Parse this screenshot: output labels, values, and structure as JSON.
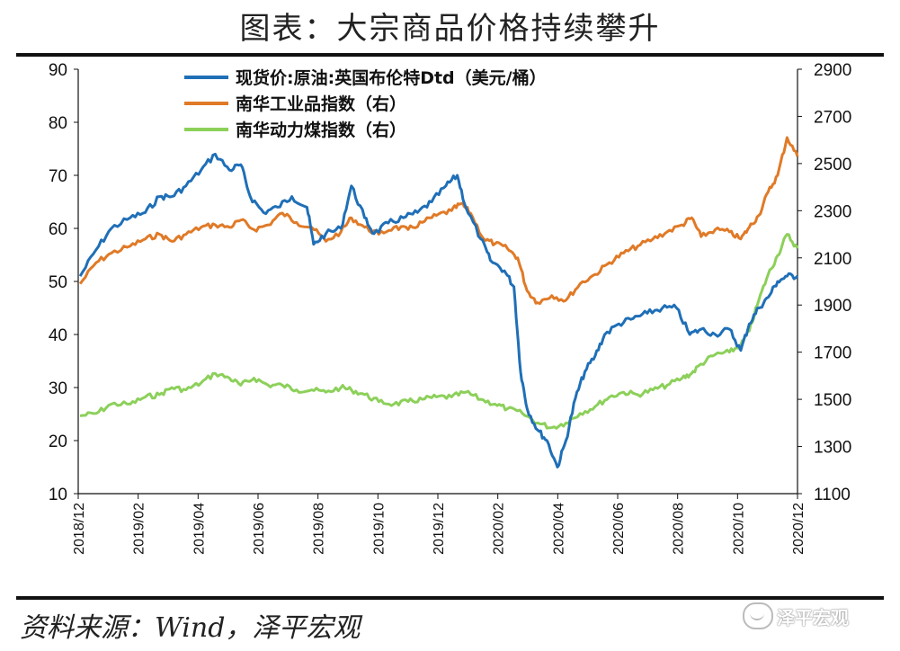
{
  "header": {
    "title": "图表：大宗商品价格持续攀升"
  },
  "footer": {
    "source": "资料来源：Wind，泽平宏观",
    "watermark": "泽平宏观"
  },
  "colors": {
    "brent": "#1F6FB7",
    "industrial": "#E07A27",
    "coal": "#8CD05A",
    "axis": "#111111"
  },
  "chart_data": {
    "type": "line",
    "title": "",
    "x_tick_labels": [
      "2018/12",
      "2019/02",
      "2019/04",
      "2019/06",
      "2019/08",
      "2019/10",
      "2019/12",
      "2020/02",
      "2020/04",
      "2020/06",
      "2020/08",
      "2020/10",
      "2020/12"
    ],
    "y_left": {
      "range": [
        10,
        90
      ],
      "ticks": [
        10,
        20,
        30,
        40,
        50,
        60,
        70,
        80,
        90
      ]
    },
    "y_right": {
      "range": [
        1100,
        2900
      ],
      "ticks": [
        1100,
        1300,
        1500,
        1700,
        1900,
        2100,
        2300,
        2500,
        2700,
        2900
      ]
    },
    "legend_position": "top-center",
    "series": [
      {
        "name": "现货价:原油:英国布伦特Dtd（美元/桶）",
        "axis": "left",
        "color_key": "brent",
        "points": [
          [
            "2018-12-03",
            51
          ],
          [
            "2018-12-20",
            56
          ],
          [
            "2019-01-05",
            60
          ],
          [
            "2019-01-25",
            62
          ],
          [
            "2019-02-10",
            63
          ],
          [
            "2019-02-25",
            66
          ],
          [
            "2019-03-10",
            66
          ],
          [
            "2019-03-25",
            68
          ],
          [
            "2019-04-10",
            71
          ],
          [
            "2019-04-25",
            74
          ],
          [
            "2019-05-10",
            71
          ],
          [
            "2019-05-22",
            72
          ],
          [
            "2019-06-01",
            66
          ],
          [
            "2019-06-15",
            63
          ],
          [
            "2019-06-30",
            64
          ],
          [
            "2019-07-15",
            66
          ],
          [
            "2019-07-31",
            64
          ],
          [
            "2019-08-07",
            57
          ],
          [
            "2019-08-20",
            59
          ],
          [
            "2019-09-05",
            60
          ],
          [
            "2019-09-16",
            68
          ],
          [
            "2019-09-30",
            62
          ],
          [
            "2019-10-10",
            59
          ],
          [
            "2019-10-25",
            61
          ],
          [
            "2019-11-10",
            62
          ],
          [
            "2019-11-25",
            63
          ],
          [
            "2019-12-10",
            65
          ],
          [
            "2019-12-25",
            68
          ],
          [
            "2020-01-06",
            70
          ],
          [
            "2020-01-15",
            64
          ],
          [
            "2020-01-31",
            58
          ],
          [
            "2020-02-10",
            54
          ],
          [
            "2020-02-25",
            52
          ],
          [
            "2020-03-06",
            49
          ],
          [
            "2020-03-13",
            33
          ],
          [
            "2020-03-20",
            26
          ],
          [
            "2020-03-31",
            22
          ],
          [
            "2020-04-10",
            20
          ],
          [
            "2020-04-21",
            15
          ],
          [
            "2020-04-30",
            20
          ],
          [
            "2020-05-10",
            28
          ],
          [
            "2020-05-20",
            33
          ],
          [
            "2020-05-31",
            36
          ],
          [
            "2020-06-10",
            40
          ],
          [
            "2020-06-25",
            42
          ],
          [
            "2020-07-10",
            43
          ],
          [
            "2020-07-25",
            44
          ],
          [
            "2020-08-10",
            45
          ],
          [
            "2020-08-25",
            45
          ],
          [
            "2020-09-08",
            40
          ],
          [
            "2020-09-20",
            41
          ],
          [
            "2020-10-05",
            40
          ],
          [
            "2020-10-20",
            41
          ],
          [
            "2020-11-01",
            37
          ],
          [
            "2020-11-10",
            42
          ],
          [
            "2020-11-20",
            45
          ],
          [
            "2020-11-30",
            47
          ],
          [
            "2020-12-10",
            50
          ],
          [
            "2020-12-20",
            51
          ],
          [
            "2020-12-31",
            51
          ]
        ]
      },
      {
        "name": "南华工业品指数（右）",
        "axis": "right",
        "color_key": "industrial",
        "points": [
          [
            "2018-12-03",
            1990
          ],
          [
            "2018-12-20",
            2080
          ],
          [
            "2019-01-05",
            2120
          ],
          [
            "2019-01-25",
            2150
          ],
          [
            "2019-02-10",
            2180
          ],
          [
            "2019-02-25",
            2200
          ],
          [
            "2019-03-10",
            2170
          ],
          [
            "2019-03-25",
            2200
          ],
          [
            "2019-04-10",
            2230
          ],
          [
            "2019-04-25",
            2240
          ],
          [
            "2019-05-10",
            2230
          ],
          [
            "2019-05-22",
            2260
          ],
          [
            "2019-06-05",
            2220
          ],
          [
            "2019-06-20",
            2240
          ],
          [
            "2019-07-05",
            2290
          ],
          [
            "2019-07-20",
            2250
          ],
          [
            "2019-08-05",
            2230
          ],
          [
            "2019-08-20",
            2170
          ],
          [
            "2019-09-05",
            2210
          ],
          [
            "2019-09-16",
            2270
          ],
          [
            "2019-09-30",
            2230
          ],
          [
            "2019-10-15",
            2200
          ],
          [
            "2019-10-31",
            2230
          ],
          [
            "2019-11-15",
            2220
          ],
          [
            "2019-11-30",
            2250
          ],
          [
            "2019-12-15",
            2280
          ],
          [
            "2019-12-31",
            2300
          ],
          [
            "2020-01-10",
            2330
          ],
          [
            "2020-01-20",
            2290
          ],
          [
            "2020-02-03",
            2180
          ],
          [
            "2020-02-15",
            2160
          ],
          [
            "2020-02-28",
            2140
          ],
          [
            "2020-03-10",
            2100
          ],
          [
            "2020-03-20",
            1960
          ],
          [
            "2020-03-31",
            1910
          ],
          [
            "2020-04-15",
            1940
          ],
          [
            "2020-04-30",
            1920
          ],
          [
            "2020-05-15",
            1990
          ],
          [
            "2020-05-31",
            2030
          ],
          [
            "2020-06-15",
            2080
          ],
          [
            "2020-06-30",
            2120
          ],
          [
            "2020-07-15",
            2150
          ],
          [
            "2020-07-31",
            2180
          ],
          [
            "2020-08-15",
            2210
          ],
          [
            "2020-08-31",
            2240
          ],
          [
            "2020-09-10",
            2270
          ],
          [
            "2020-09-20",
            2190
          ],
          [
            "2020-10-05",
            2220
          ],
          [
            "2020-10-20",
            2210
          ],
          [
            "2020-11-01",
            2180
          ],
          [
            "2020-11-10",
            2230
          ],
          [
            "2020-11-20",
            2280
          ],
          [
            "2020-11-30",
            2380
          ],
          [
            "2020-12-10",
            2450
          ],
          [
            "2020-12-20",
            2610
          ],
          [
            "2020-12-31",
            2530
          ]
        ]
      },
      {
        "name": "南华动力煤指数（右）",
        "axis": "right",
        "color_key": "coal",
        "points": [
          [
            "2018-12-03",
            1430
          ],
          [
            "2018-12-20",
            1440
          ],
          [
            "2019-01-05",
            1480
          ],
          [
            "2019-01-25",
            1480
          ],
          [
            "2019-02-10",
            1510
          ],
          [
            "2019-02-25",
            1520
          ],
          [
            "2019-03-10",
            1550
          ],
          [
            "2019-03-25",
            1540
          ],
          [
            "2019-04-10",
            1570
          ],
          [
            "2019-04-25",
            1610
          ],
          [
            "2019-05-10",
            1590
          ],
          [
            "2019-05-22",
            1560
          ],
          [
            "2019-06-05",
            1590
          ],
          [
            "2019-06-20",
            1560
          ],
          [
            "2019-07-05",
            1560
          ],
          [
            "2019-07-20",
            1540
          ],
          [
            "2019-08-05",
            1540
          ],
          [
            "2019-08-20",
            1530
          ],
          [
            "2019-09-05",
            1550
          ],
          [
            "2019-09-16",
            1540
          ],
          [
            "2019-09-30",
            1520
          ],
          [
            "2019-10-15",
            1490
          ],
          [
            "2019-10-31",
            1480
          ],
          [
            "2019-11-15",
            1490
          ],
          [
            "2019-11-30",
            1500
          ],
          [
            "2019-12-15",
            1510
          ],
          [
            "2019-12-31",
            1510
          ],
          [
            "2020-01-15",
            1530
          ],
          [
            "2020-01-31",
            1500
          ],
          [
            "2020-02-15",
            1480
          ],
          [
            "2020-02-28",
            1460
          ],
          [
            "2020-03-15",
            1440
          ],
          [
            "2020-03-31",
            1400
          ],
          [
            "2020-04-15",
            1380
          ],
          [
            "2020-04-30",
            1400
          ],
          [
            "2020-05-15",
            1440
          ],
          [
            "2020-05-31",
            1470
          ],
          [
            "2020-06-15",
            1510
          ],
          [
            "2020-06-30",
            1530
          ],
          [
            "2020-07-15",
            1520
          ],
          [
            "2020-07-31",
            1540
          ],
          [
            "2020-08-15",
            1560
          ],
          [
            "2020-08-31",
            1590
          ],
          [
            "2020-09-10",
            1610
          ],
          [
            "2020-09-20",
            1650
          ],
          [
            "2020-10-05",
            1690
          ],
          [
            "2020-10-20",
            1700
          ],
          [
            "2020-11-01",
            1730
          ],
          [
            "2020-11-10",
            1790
          ],
          [
            "2020-11-20",
            1920
          ],
          [
            "2020-11-30",
            2030
          ],
          [
            "2020-12-10",
            2110
          ],
          [
            "2020-12-20",
            2200
          ],
          [
            "2020-12-31",
            2140
          ]
        ]
      }
    ]
  }
}
